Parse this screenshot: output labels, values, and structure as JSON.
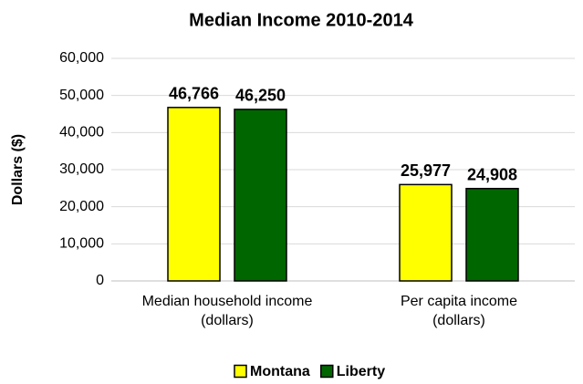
{
  "chart_data": {
    "type": "bar",
    "title": "Median Income 2010-2014",
    "y_label": "Dollars ($)",
    "categories": [
      "Median household income (dollars)",
      "Per capita income (dollars)"
    ],
    "series": [
      {
        "name": "Montana",
        "color": "#ffff00",
        "values": [
          46766,
          25977
        ],
        "value_labels": [
          "46,766",
          "25,977"
        ]
      },
      {
        "name": "Liberty",
        "color": "#006600",
        "values": [
          46250,
          24908
        ],
        "value_labels": [
          "46,250",
          "24,908"
        ]
      }
    ],
    "ylim": [
      0,
      60000
    ],
    "yticks": [
      0,
      {
        "value": 10000,
        "label": "10,000"
      },
      {
        "value": 20000,
        "label": "20,000"
      },
      {
        "value": 30000,
        "label": "30,000"
      },
      {
        "value": 40000,
        "label": "40,000"
      },
      {
        "value": 50000,
        "label": "50,000"
      },
      {
        "value": 60000,
        "label": "60,000"
      }
    ],
    "grid": true,
    "legend": "bottom"
  }
}
